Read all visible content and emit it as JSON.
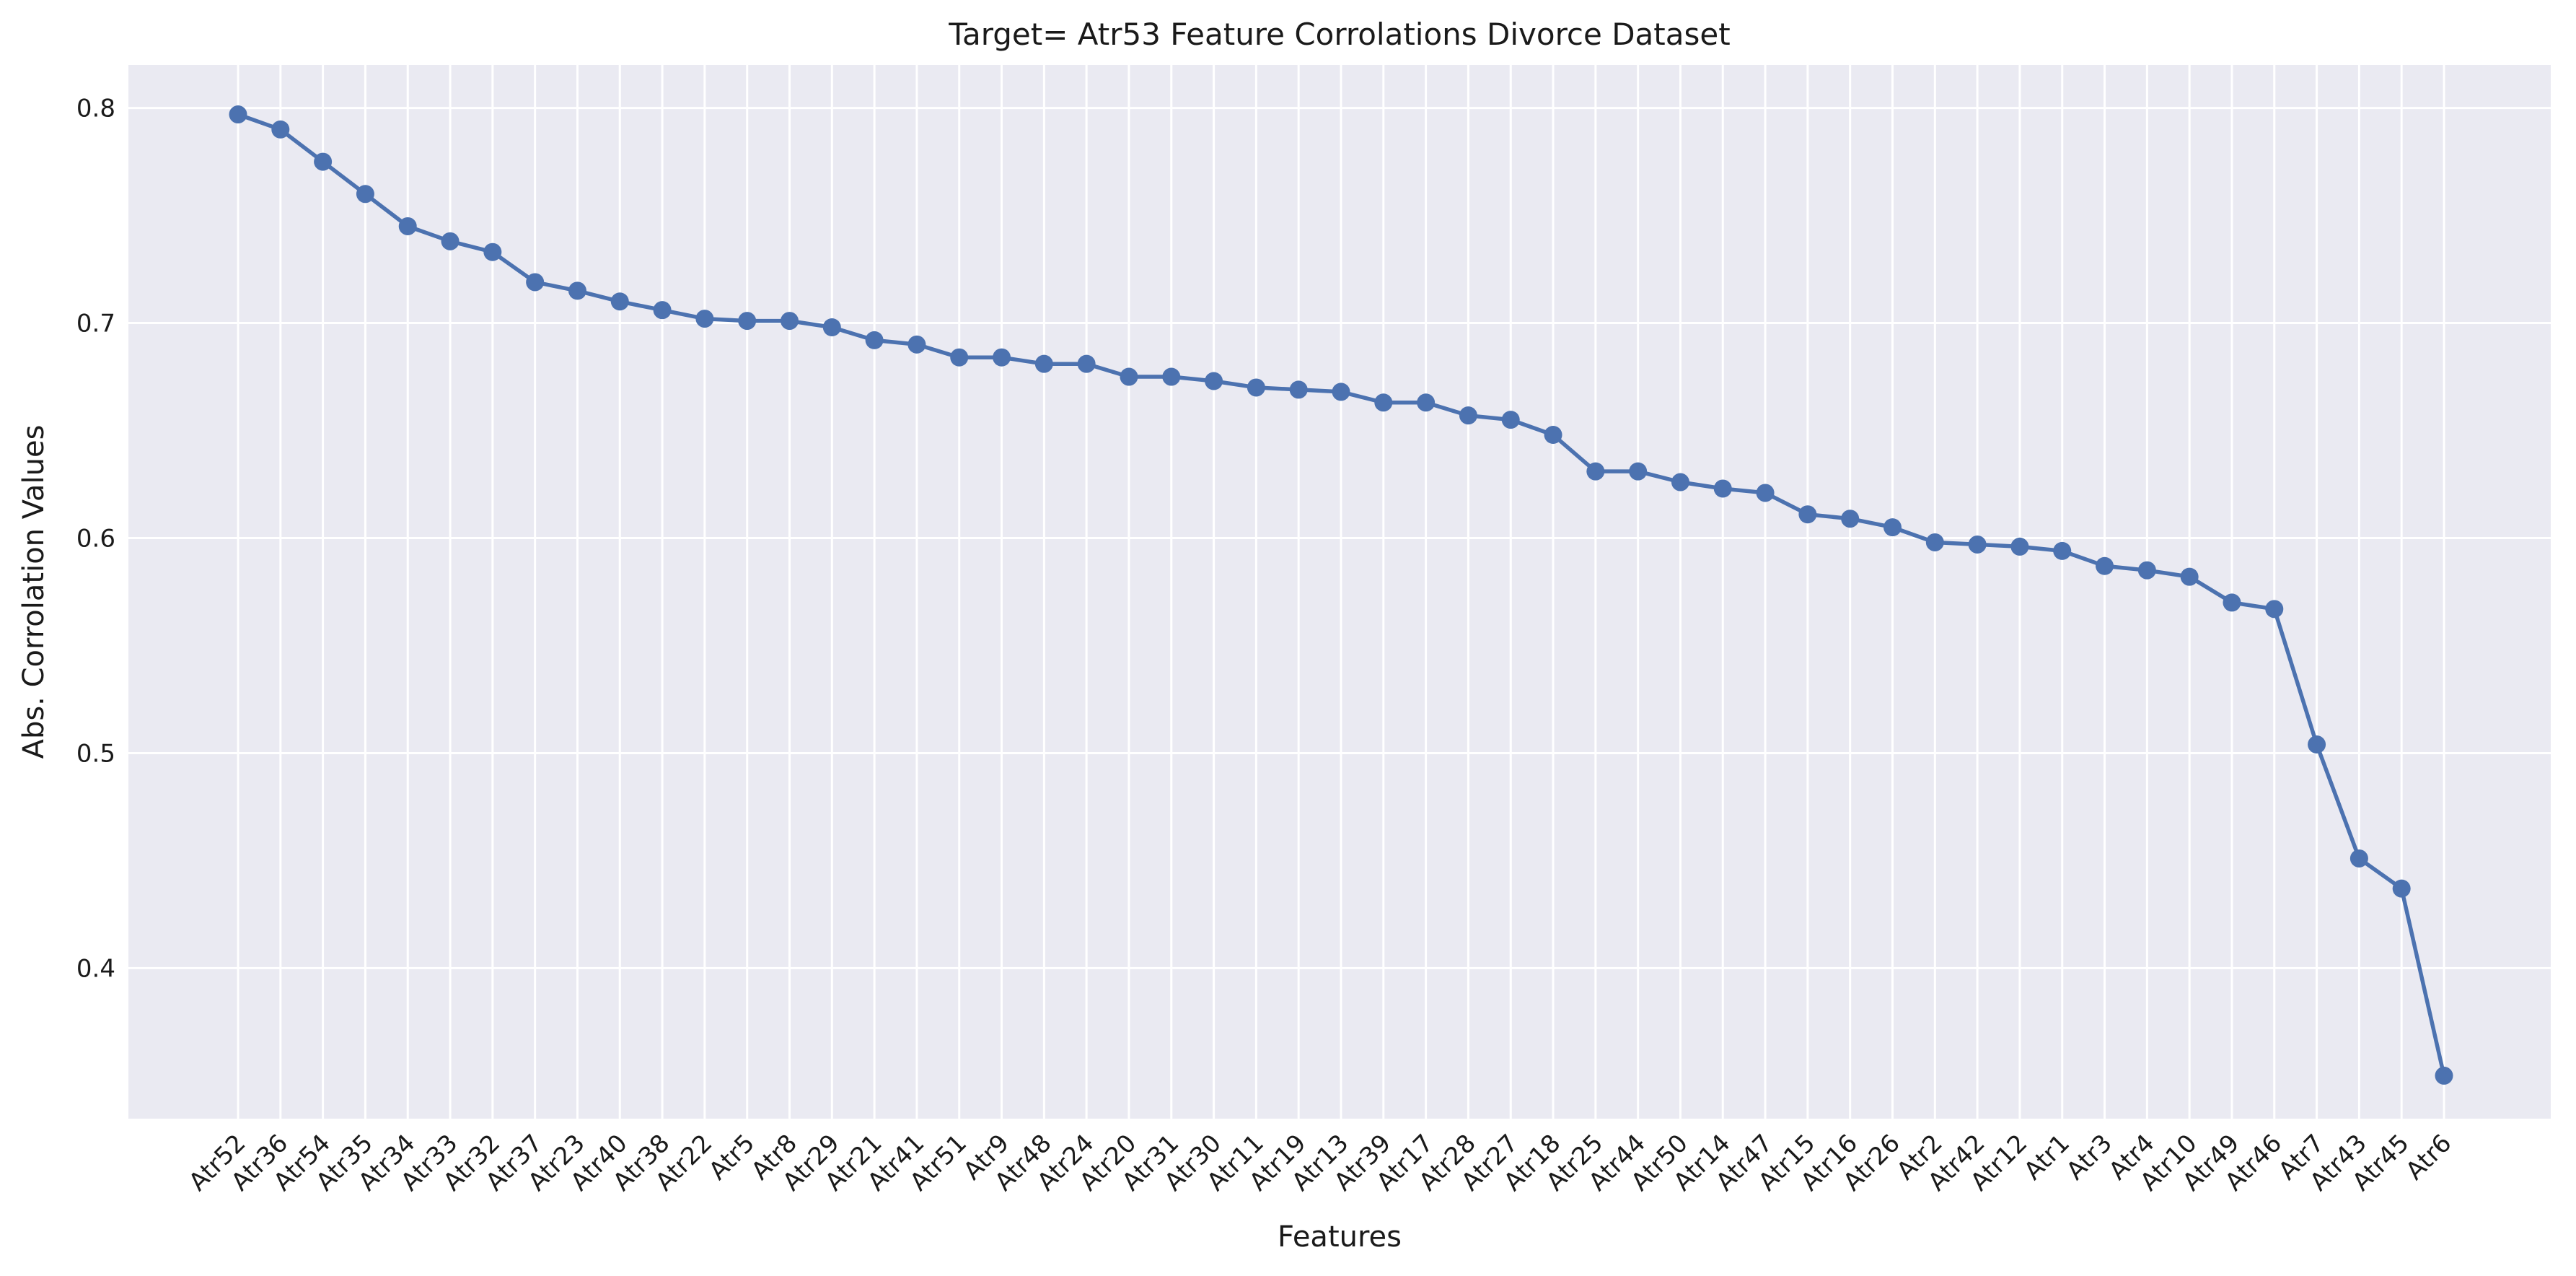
{
  "chart_data": {
    "type": "line",
    "title": "Target= Atr53 Feature Corrolations Divorce Dataset",
    "xlabel": "Features",
    "ylabel": "Abs. Corrolation Values",
    "ylim": [
      0.33,
      0.82
    ],
    "yticks": [
      0.4,
      0.5,
      0.6,
      0.7,
      0.8
    ],
    "ytick_labels": [
      "0.4",
      "0.5",
      "0.6",
      "0.7",
      "0.8"
    ],
    "grid": true,
    "markers": true,
    "colors": {
      "line": "#4c72b0",
      "background": "#eaeaf2",
      "grid": "#ffffff"
    },
    "categories": [
      "Atr52",
      "Atr36",
      "Atr54",
      "Atr35",
      "Atr34",
      "Atr33",
      "Atr32",
      "Atr37",
      "Atr23",
      "Atr40",
      "Atr38",
      "Atr22",
      "Atr5",
      "Atr8",
      "Atr29",
      "Atr21",
      "Atr41",
      "Atr51",
      "Atr9",
      "Atr48",
      "Atr24",
      "Atr20",
      "Atr31",
      "Atr30",
      "Atr11",
      "Atr19",
      "Atr13",
      "Atr39",
      "Atr17",
      "Atr28",
      "Atr27",
      "Atr18",
      "Atr25",
      "Atr44",
      "Atr50",
      "Atr14",
      "Atr47",
      "Atr15",
      "Atr16",
      "Atr26",
      "Atr2",
      "Atr42",
      "Atr12",
      "Atr1",
      "Atr3",
      "Atr4",
      "Atr10",
      "Atr49",
      "Atr46",
      "Atr7",
      "Atr43",
      "Atr45",
      "Atr6"
    ],
    "values": [
      0.797,
      0.79,
      0.775,
      0.76,
      0.745,
      0.738,
      0.733,
      0.719,
      0.715,
      0.71,
      0.706,
      0.702,
      0.701,
      0.701,
      0.698,
      0.692,
      0.69,
      0.684,
      0.684,
      0.681,
      0.681,
      0.675,
      0.675,
      0.673,
      0.67,
      0.669,
      0.668,
      0.663,
      0.663,
      0.657,
      0.655,
      0.648,
      0.631,
      0.631,
      0.626,
      0.623,
      0.621,
      0.611,
      0.609,
      0.605,
      0.598,
      0.597,
      0.596,
      0.594,
      0.587,
      0.585,
      0.582,
      0.57,
      0.567,
      0.504,
      0.451,
      0.437,
      0.35
    ]
  }
}
